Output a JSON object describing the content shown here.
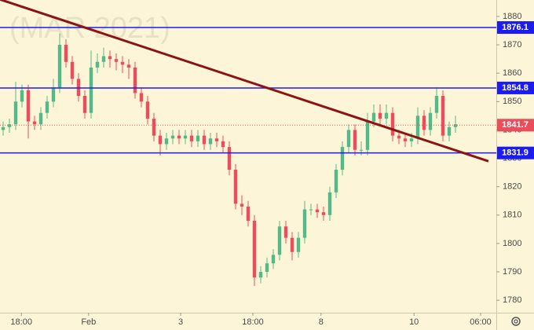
{
  "chart_data": {
    "type": "candlestick",
    "watermark": "(MAR 2021)",
    "up_color": "#53b987",
    "down_color": "#eb4d5c",
    "xlim": [
      -0.5,
      78.5
    ],
    "xticks": [
      {
        "value": 2.9,
        "label": "18:00"
      },
      {
        "value": 13.6,
        "label": "Feb"
      },
      {
        "value": 28.25,
        "label": "3"
      },
      {
        "value": 39.75,
        "label": "18:00"
      },
      {
        "value": 50.6,
        "label": "8"
      },
      {
        "value": 65.4,
        "label": "10"
      },
      {
        "value": 76,
        "label": "06:00"
      }
    ],
    "ylim": [
      1775.6,
      1885.8
    ],
    "yticks": [
      1780,
      1790,
      1800,
      1810,
      1820,
      1830,
      1840,
      1850,
      1860,
      1870,
      1880
    ],
    "open": [
      1840,
      1841,
      1842,
      1850,
      1854,
      1843,
      1842,
      1846,
      1850,
      1855,
      1870,
      1864,
      1858,
      1852,
      1846,
      1862,
      1864,
      1866,
      1865,
      1864,
      1863,
      1862,
      1853,
      1850,
      1844,
      1838,
      1835,
      1837,
      1838,
      1837,
      1838,
      1836,
      1838,
      1835,
      1837,
      1836,
      1834,
      1826,
      1814,
      1813,
      1808,
      1788,
      1790,
      1793,
      1796,
      1806,
      1802,
      1797,
      1802,
      1812,
      1812,
      1811,
      1810,
      1818,
      1826,
      1834,
      1840,
      1833,
      1833,
      1843,
      1846,
      1844,
      1846,
      1838,
      1837,
      1836,
      1837,
      1845,
      1840,
      1846,
      1852,
      1838,
      1841
    ],
    "high": [
      1843,
      1844,
      1857,
      1856,
      1856,
      1845,
      1848,
      1852,
      1858,
      1874,
      1872,
      1866,
      1860,
      1854,
      1868,
      1867,
      1869,
      1868,
      1867,
      1866,
      1865,
      1864,
      1855,
      1852,
      1846,
      1840,
      1839,
      1840,
      1840,
      1840,
      1840,
      1840,
      1840,
      1839,
      1839,
      1838,
      1836,
      1828,
      1817,
      1815,
      1810,
      1792,
      1795,
      1798,
      1808,
      1808,
      1804,
      1804,
      1815,
      1814,
      1814,
      1813,
      1820,
      1828,
      1836,
      1842,
      1842,
      1836,
      1846,
      1849,
      1849,
      1849,
      1848,
      1840,
      1839,
      1839,
      1848,
      1847,
      1848,
      1855,
      1854,
      1843,
      1845
    ],
    "low": [
      1838,
      1839,
      1840,
      1848,
      1837,
      1840,
      1840,
      1844,
      1848,
      1853,
      1862,
      1856,
      1850,
      1844,
      1844,
      1860,
      1862,
      1862,
      1861,
      1860,
      1858,
      1851,
      1848,
      1842,
      1836,
      1831,
      1833,
      1835,
      1835,
      1835,
      1834,
      1834,
      1833,
      1833,
      1834,
      1832,
      1824,
      1812,
      1810,
      1806,
      1785,
      1786,
      1788,
      1791,
      1794,
      1800,
      1794,
      1795,
      1800,
      1810,
      1809,
      1808,
      1808,
      1816,
      1824,
      1832,
      1831,
      1831,
      1831,
      1841,
      1842,
      1842,
      1836,
      1835,
      1834,
      1834,
      1835,
      1838,
      1838,
      1844,
      1836,
      1836,
      1839
    ],
    "close": [
      1841,
      1842,
      1850,
      1854,
      1843,
      1842,
      1846,
      1850,
      1855,
      1870,
      1864,
      1858,
      1852,
      1846,
      1862,
      1864,
      1866,
      1865,
      1864,
      1863,
      1862,
      1853,
      1850,
      1844,
      1838,
      1835,
      1837,
      1838,
      1837,
      1838,
      1836,
      1838,
      1835,
      1837,
      1836,
      1834,
      1826,
      1814,
      1813,
      1808,
      1788,
      1790,
      1793,
      1796,
      1806,
      1802,
      1797,
      1802,
      1812,
      1812,
      1811,
      1810,
      1818,
      1826,
      1834,
      1840,
      1833,
      1833,
      1843,
      1846,
      1844,
      1846,
      1838,
      1837,
      1836,
      1837,
      1845,
      1840,
      1846,
      1852,
      1838,
      1841,
      1842
    ],
    "levels": [
      1876.1,
      1854.8,
      1831.9
    ],
    "level_color": "#1c1cf0",
    "last_price": 1841.7,
    "last_price_color": "#eb4d5c",
    "trend_line": {
      "x": [
        -0.5,
        77.25
      ],
      "y": [
        1886,
        1829
      ],
      "color": "#8b1414"
    }
  }
}
